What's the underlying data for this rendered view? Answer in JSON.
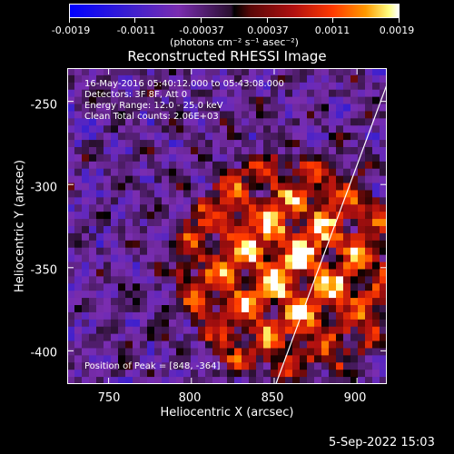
{
  "colorbar": {
    "ticks": [
      "-0.0019",
      "-0.0011",
      "-0.00037",
      "0.00037",
      "0.0011",
      "0.0019"
    ],
    "unit_label": "(photons cm⁻² s⁻¹ asec⁻²)"
  },
  "chart_data": {
    "type": "heatmap",
    "title": "Reconstructed RHESSI Image",
    "xlabel": "Heliocentric X (arcsec)",
    "ylabel": "Heliocentric Y (arcsec)",
    "xlim": [
      725,
      918
    ],
    "ylim": [
      -420,
      -230
    ],
    "x_ticks": [
      "750",
      "800",
      "850",
      "900"
    ],
    "y_ticks": [
      "-250",
      "-300",
      "-350",
      "-400"
    ],
    "x_tick_values": [
      750,
      800,
      850,
      900
    ],
    "y_tick_values": [
      -250,
      -300,
      -350,
      -400
    ],
    "color_range": [
      -0.0019,
      0.0019
    ],
    "limb_line": {
      "x": [
        851,
        918
      ],
      "y": [
        -420,
        -240
      ]
    },
    "annotations": {
      "time": "16-May-2016 05:40:12.000 to 05:43:08.000",
      "detectors": "Detectors: 3F 8F, Att 0",
      "energy": "Energy Range: 12.0 - 25.0 keV",
      "algorithm": "Clean    Total counts: 2.06E+03",
      "peak": "Position of Peak = [848, -364]"
    }
  },
  "footer": {
    "date": "5-Sep-2022 15:03"
  }
}
